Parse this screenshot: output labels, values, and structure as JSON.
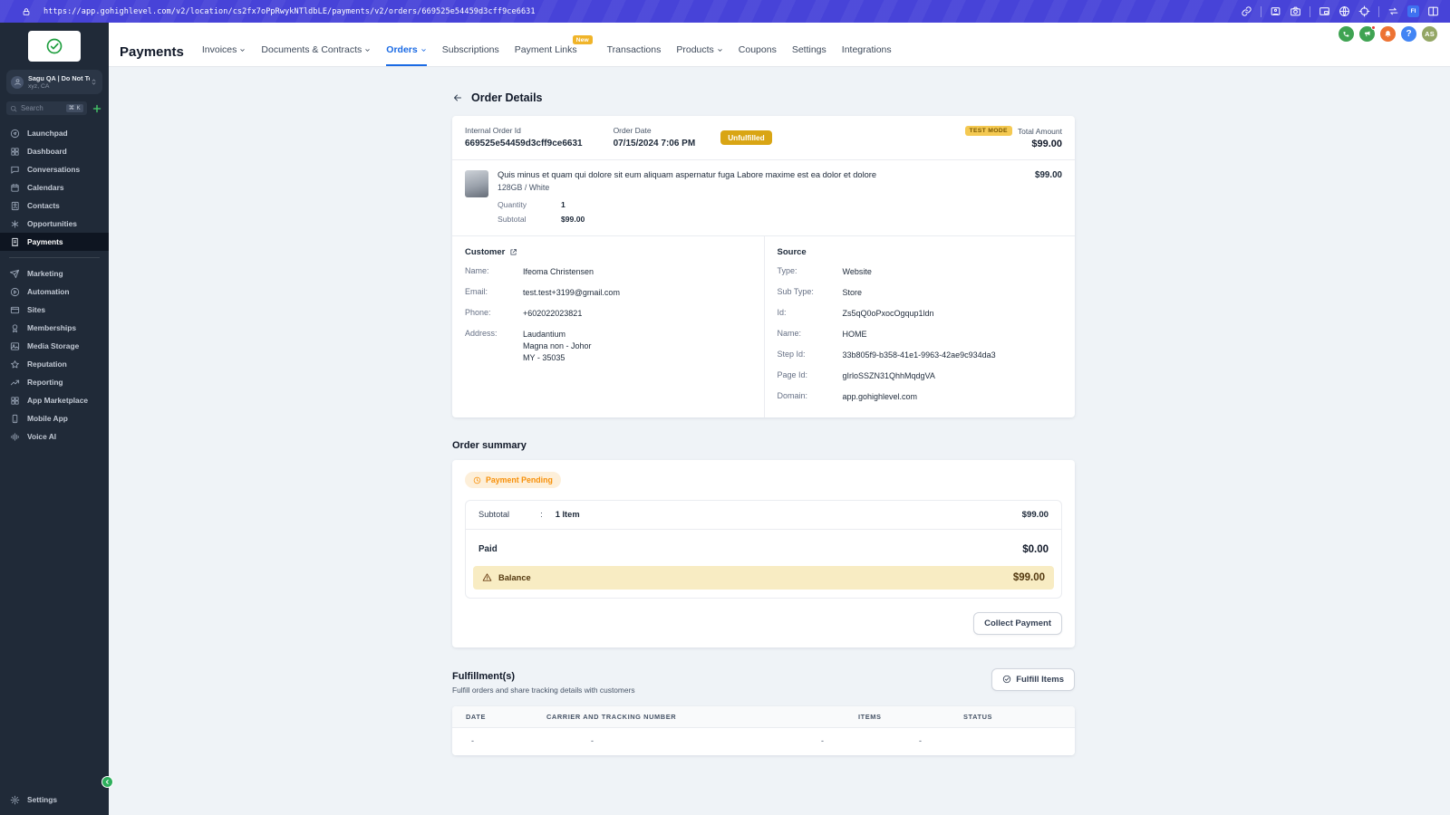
{
  "browser": {
    "url": "https://app.gohighlevel.com/v2/location/cs2fx7oPpRwykNTldbLE/payments/v2/orders/669525e54459d3cff9ce6631",
    "profile_badge": "FI"
  },
  "sidebar": {
    "account": {
      "name": "Sagu QA | Do Not To...",
      "location": "xyz, CA"
    },
    "search": {
      "placeholder": "Search",
      "shortcut": "⌘ K"
    },
    "nav_main": [
      {
        "label": "Launchpad",
        "icon": "compass"
      },
      {
        "label": "Dashboard",
        "icon": "grid"
      },
      {
        "label": "Conversations",
        "icon": "chat"
      },
      {
        "label": "Calendars",
        "icon": "calendar"
      },
      {
        "label": "Contacts",
        "icon": "contacts"
      },
      {
        "label": "Opportunities",
        "icon": "opp"
      },
      {
        "label": "Payments",
        "icon": "payments",
        "active": true
      }
    ],
    "nav_secondary": [
      {
        "label": "Marketing",
        "icon": "send"
      },
      {
        "label": "Automation",
        "icon": "auto"
      },
      {
        "label": "Sites",
        "icon": "sites"
      },
      {
        "label": "Memberships",
        "icon": "medal"
      },
      {
        "label": "Media Storage",
        "icon": "media"
      },
      {
        "label": "Reputation",
        "icon": "star"
      },
      {
        "label": "Reporting",
        "icon": "trend"
      },
      {
        "label": "App Marketplace",
        "icon": "grid"
      },
      {
        "label": "Mobile App",
        "icon": "phoneapp"
      },
      {
        "label": "Voice AI",
        "icon": "voice"
      }
    ],
    "settings_label": "Settings"
  },
  "header": {
    "title": "Payments",
    "tabs": [
      {
        "label": "Invoices",
        "dropdown": true
      },
      {
        "label": "Documents & Contracts",
        "dropdown": true
      },
      {
        "label": "Orders",
        "dropdown": true,
        "active": true
      },
      {
        "label": "Subscriptions"
      },
      {
        "label": "Payment Links",
        "badge": "New"
      },
      {
        "label": "Transactions"
      },
      {
        "label": "Products",
        "dropdown": true
      },
      {
        "label": "Coupons"
      },
      {
        "label": "Settings"
      },
      {
        "label": "Integrations"
      }
    ],
    "avatar_initials": "AS",
    "help_label": "?"
  },
  "page": {
    "back_title": "Order Details",
    "order": {
      "internal_id_label": "Internal Order Id",
      "internal_id": "669525e54459d3cff9ce6631",
      "date_label": "Order Date",
      "date": "07/15/2024 7:06 PM",
      "status": "Unfulfilled",
      "test_mode": "TEST MODE",
      "total_label": "Total Amount",
      "total": "$99.00",
      "product": {
        "name": "Quis minus et quam qui dolore sit eum aliquam aspernatur fuga Labore maxime est ea dolor et dolore",
        "variant": "128GB / White",
        "quantity_label": "Quantity",
        "quantity": "1",
        "subtotal_label": "Subtotal",
        "subtotal": "$99.00",
        "price": "$99.00"
      }
    },
    "customer": {
      "title": "Customer",
      "name_label": "Name:",
      "name": "Ifeoma Christensen",
      "email_label": "Email:",
      "email": "test.test+3199@gmail.com",
      "phone_label": "Phone:",
      "phone": "+602022023821",
      "address_label": "Address:",
      "address1": "Laudantium",
      "address2": "Magna non - Johor",
      "address3": "MY - 35035"
    },
    "source": {
      "title": "Source",
      "type_label": "Type:",
      "type": "Website",
      "subtype_label": "Sub Type:",
      "subtype": "Store",
      "id_label": "Id:",
      "id": "Zs5qQ0oPxocOgqup1ldn",
      "name_label": "Name:",
      "name": "HOME",
      "stepid_label": "Step Id:",
      "stepid": "33b805f9-b358-41e1-9963-42ae9c934da3",
      "pageid_label": "Page Id:",
      "pageid": "gIrloSSZN31QhhMqdgVA",
      "domain_label": "Domain:",
      "domain": "app.gohighlevel.com"
    },
    "summary": {
      "title": "Order summary",
      "status_pill": "Payment Pending",
      "subtotal_label": "Subtotal",
      "subtotal_qty": "1 Item",
      "subtotal_value": "$99.00",
      "paid_label": "Paid",
      "paid_value": "$0.00",
      "balance_label": "Balance",
      "balance_value": "$99.00",
      "collect_button": "Collect Payment"
    },
    "fulfillments": {
      "title": "Fulfillment(s)",
      "subtitle": "Fulfill orders and share tracking details with customers",
      "button": "Fulfill Items",
      "columns": [
        "DATE",
        "CARRIER AND TRACKING NUMBER",
        "ITEMS",
        "STATUS"
      ],
      "row": [
        "-",
        "-",
        "-",
        "-"
      ]
    }
  },
  "colors": {
    "topbar_indigo": "#4743D8",
    "sidebar_bg": "#202A38",
    "accent_blue": "#1A6AE4",
    "link_blue": "#2563EB",
    "unfulfilled_amber": "#D9A514",
    "test_mode_bg": "#F4C952",
    "pending_orange": "#F79009",
    "balance_bg": "#F8ECC3",
    "new_badge": "#F0B429",
    "success_green": "#3FA352",
    "notify_orange": "#ED7333"
  }
}
